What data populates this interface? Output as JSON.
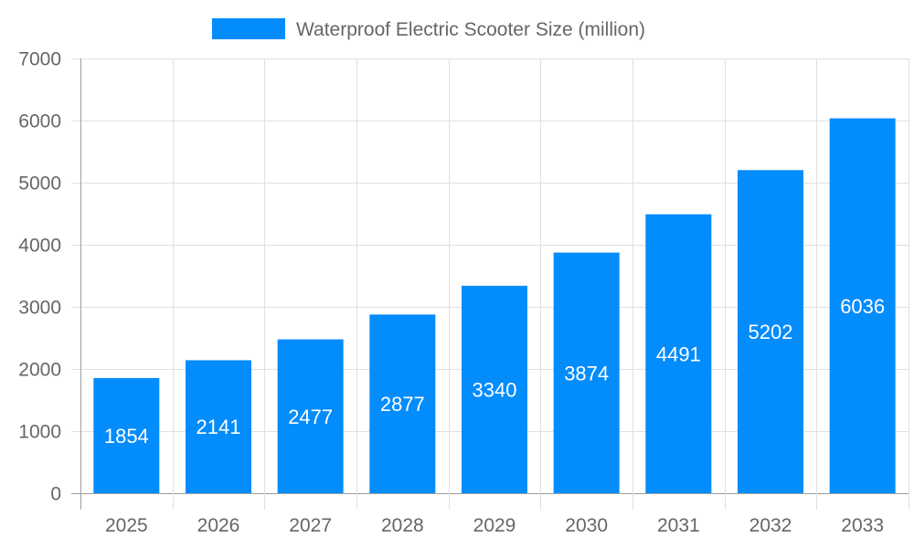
{
  "chart_data": {
    "type": "bar",
    "categories": [
      "2025",
      "2026",
      "2027",
      "2028",
      "2029",
      "2030",
      "2031",
      "2032",
      "2033"
    ],
    "series": [
      {
        "name": "Waterproof Electric Scooter Size (million)",
        "values": [
          1854,
          2141,
          2477,
          2877,
          3340,
          3874,
          4491,
          5202,
          6036
        ]
      }
    ],
    "ylim": [
      0,
      7000
    ],
    "yticks": [
      0,
      1000,
      2000,
      3000,
      4000,
      5000,
      6000,
      7000
    ],
    "grid": true,
    "legend": "top",
    "data_labels": "inside-center",
    "colors": {
      "bar": "#038cfc",
      "grid": "#e0e0e0",
      "axis": "#9e9e9e",
      "text": "#666666",
      "label": "#ffffff"
    }
  }
}
